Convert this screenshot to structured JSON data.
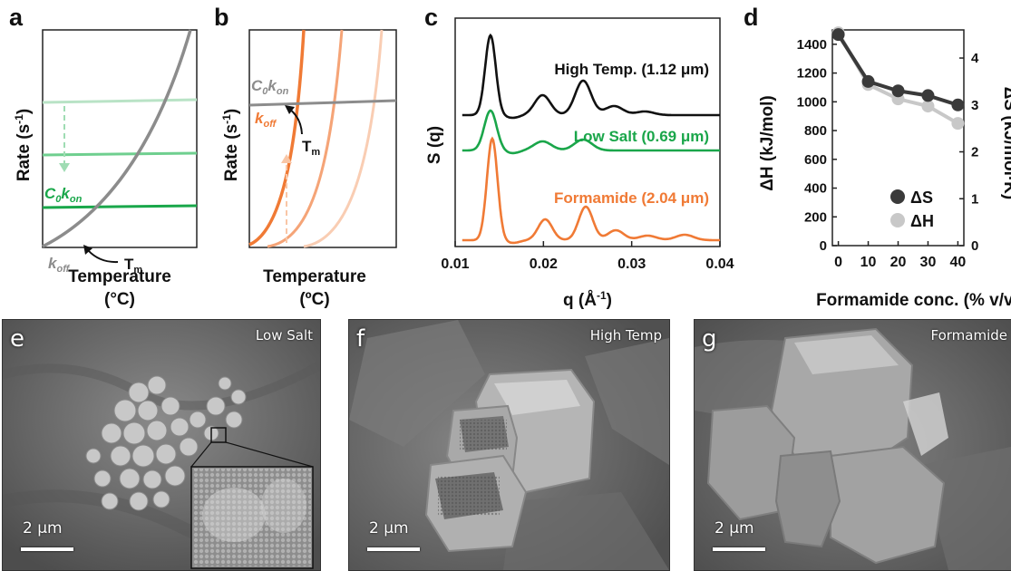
{
  "panels": {
    "a": {
      "letter": "a",
      "ylabel": "Rate (s",
      "ylabel_sup": "-1",
      "ylabel_end": ")",
      "xlabel_line1": "Temperature",
      "xlabel_line2": "(°C)",
      "curve_label_on": "C",
      "curve_label_on_sub": "0",
      "curve_label_on_k": "k",
      "curve_label_on_ksub": "on",
      "curve_label_off": "k",
      "curve_label_off_sub": "off",
      "tm": "T",
      "tm_sub": "m",
      "colors": {
        "koff": "#8c8c8c",
        "kon_light": "#b9e3c6",
        "kon_mid": "#6fcf8f",
        "kon_dark": "#19a74a"
      }
    },
    "b": {
      "letter": "b",
      "ylabel": "Rate (s",
      "ylabel_sup": "-1",
      "ylabel_end": ")",
      "xlabel_line1": "Temperature",
      "xlabel_line2": "(ºC)",
      "curve_label_on": "C",
      "curve_label_on_sub": "0",
      "curve_label_on_k": "k",
      "curve_label_on_ksub": "on",
      "curve_label_off": "k",
      "curve_label_off_sub": "off",
      "tm": "T",
      "tm_sub": "m",
      "colors": {
        "kon": "#8c8c8c",
        "koff_dark": "#f07a35",
        "koff_mid": "#f5a477",
        "koff_light": "#f9cdb3"
      }
    },
    "c": {
      "letter": "c",
      "ylabel": "S (q)",
      "xlabel": "q (Å",
      "xlabel_sup": "-1",
      "xlabel_end": ")",
      "xticks": [
        "0.01",
        "0.02",
        "0.03",
        "0.04"
      ],
      "labels": {
        "high_temp": "High Temp. (1.12 μm)",
        "low_salt": "Low Salt (0.69 μm)",
        "formamide": "Formamide (2.04 μm)"
      },
      "colors": {
        "high_temp": "#111111",
        "low_salt": "#1aa64a",
        "formamide": "#f07a35"
      }
    },
    "d": {
      "letter": "d",
      "ylabel_left": "ΔH (kJ/mol)",
      "ylabel_right": "ΔS (kJ/mol·K)",
      "xlabel": "Formamide conc. (% v/v)",
      "legend": {
        "ds": "ΔS",
        "dh": "ΔH"
      },
      "colors": {
        "ds": "#3a3a3a",
        "dh": "#c8c8c8"
      }
    },
    "e": {
      "letter": "e",
      "tag": "Low Salt",
      "scale": "2 μm"
    },
    "f": {
      "letter": "f",
      "tag": "High Temp",
      "scale": "2 μm"
    },
    "g": {
      "letter": "g",
      "tag": "Formamide",
      "scale": "2 μm"
    }
  },
  "chart_data": [
    {
      "type": "line",
      "panel": "c",
      "xlabel": "q (Å-1)",
      "ylabel": "S (q)",
      "xlim": [
        0.01,
        0.04
      ],
      "series": [
        {
          "name": "High Temp. (1.12 μm)",
          "peaks_q": [
            0.014,
            0.0199,
            0.0245,
            0.028,
            0.0315
          ]
        },
        {
          "name": "Low Salt (0.69 μm)",
          "peaks_q": [
            0.014,
            0.0199,
            0.0245
          ]
        },
        {
          "name": "Formamide (2.04 μm)",
          "peaks_q": [
            0.0142,
            0.0202,
            0.0248,
            0.0282,
            0.0318,
            0.036
          ]
        }
      ]
    },
    {
      "type": "line",
      "panel": "d",
      "xlabel": "Formamide conc. (% v/v)",
      "ylabel": "ΔH (kJ/mol)",
      "ylabel_right": "ΔS (kJ/mol·K)",
      "x": [
        0,
        10,
        20,
        30,
        40
      ],
      "xticks": [
        "0",
        "10",
        "20",
        "30",
        "40"
      ],
      "yticks": [
        "0",
        "200",
        "400",
        "600",
        "800",
        "1000",
        "1200",
        "1400"
      ],
      "yticks_right": [
        "0",
        "1",
        "2",
        "3",
        "4"
      ],
      "ylim": [
        0,
        1500
      ],
      "ylim_right": [
        0,
        4.6
      ],
      "series": [
        {
          "name": "ΔS",
          "values": [
            4.5,
            3.5,
            3.3,
            3.2,
            3.0
          ],
          "axis": "right"
        },
        {
          "name": "ΔH",
          "values": [
            1480,
            1120,
            1020,
            970,
            850
          ],
          "axis": "left"
        }
      ]
    }
  ]
}
